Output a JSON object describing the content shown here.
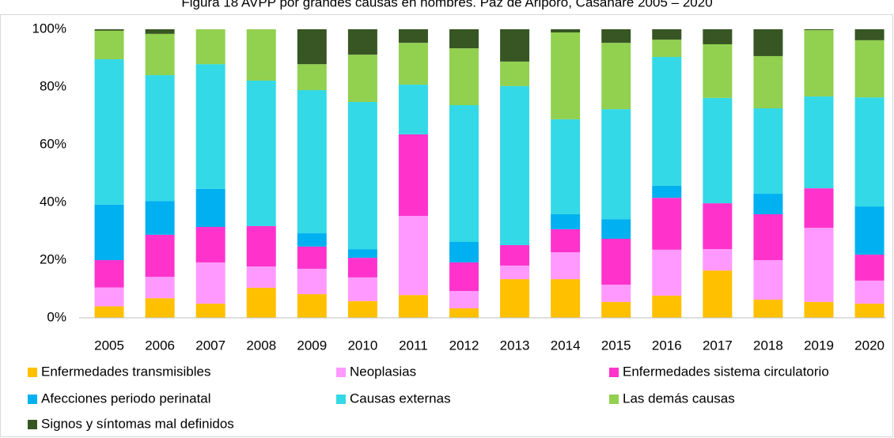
{
  "chart_data": {
    "type": "stacked_bar",
    "title": "Figura 18 AVPP por grandes causas en hombres. Paz de Ariporo, Casanare 2005 – 2020",
    "categories": [
      "2005",
      "2006",
      "2007",
      "2008",
      "2009",
      "2010",
      "2011",
      "2012",
      "2013",
      "2014",
      "2015",
      "2016",
      "2017",
      "2018",
      "2019",
      "2020"
    ],
    "series": [
      {
        "name": "Enfermedades transmisibles",
        "color": "#ffc000",
        "values": [
          4,
          6.8,
          4.9,
          10.4,
          8.2,
          5.8,
          7.9,
          3.3,
          13.4,
          13.4,
          5.5,
          7.7,
          16.4,
          6.3,
          5.5,
          4.9
        ]
      },
      {
        "name": "Neoplasias",
        "color": "#ff99ff",
        "values": [
          6.5,
          7.4,
          14.3,
          7.4,
          8.8,
          8.2,
          27.4,
          6,
          4.7,
          9.3,
          6,
          15.9,
          7.4,
          13.7,
          25.7,
          8
        ]
      },
      {
        "name": "Enfermedades sistema circulatorio",
        "color": "#ff33cc",
        "values": [
          9.5,
          14.6,
          12.3,
          14,
          7.7,
          6.8,
          28.3,
          9.9,
          7.1,
          8,
          15.9,
          18,
          15.9,
          15.9,
          13.7,
          9
        ]
      },
      {
        "name": "Afecciones periodo perinatal",
        "color": "#00b0f0",
        "values": [
          19.2,
          11.7,
          13.2,
          0,
          4.6,
          3,
          0,
          7.1,
          0,
          5.2,
          6.8,
          4.2,
          0,
          7.1,
          0,
          16.7
        ]
      },
      {
        "name": "Causas externas",
        "color": "#33d9e6",
        "values": [
          50.4,
          43.6,
          43.2,
          50.4,
          49.6,
          51,
          17.2,
          47.4,
          55.1,
          32.9,
          38.1,
          44.6,
          36.5,
          29.6,
          31.8,
          37.8
        ]
      },
      {
        "name": "Las demás causas",
        "color": "#92d050",
        "values": [
          9.9,
          14.3,
          12.1,
          17.8,
          9,
          16.4,
          14.5,
          19.7,
          8.5,
          30.1,
          23,
          6,
          18.6,
          18.1,
          23,
          19.8
        ]
      },
      {
        "name": "Signos y síntomas mal definidos",
        "color": "#375623",
        "values": [
          0.5,
          1.6,
          0,
          0,
          12.1,
          8.8,
          4.7,
          6.6,
          11.2,
          1.1,
          4.7,
          3.6,
          5.2,
          9.3,
          0.3,
          3.8
        ]
      }
    ],
    "ylim": [
      0,
      100
    ],
    "yticks": [
      {
        "value": 0,
        "label": "0%"
      },
      {
        "value": 20,
        "label": "20%"
      },
      {
        "value": 40,
        "label": "40%"
      },
      {
        "value": 60,
        "label": "60%"
      },
      {
        "value": 80,
        "label": "80%"
      },
      {
        "value": 100,
        "label": "100%"
      }
    ],
    "grid": false
  }
}
